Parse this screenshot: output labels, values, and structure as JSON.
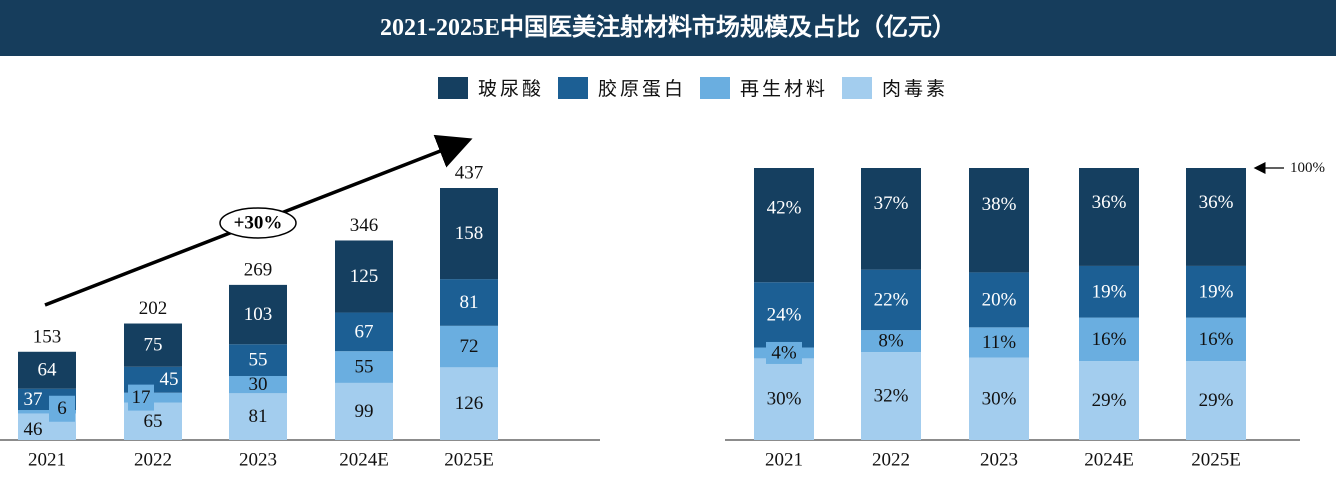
{
  "title": "2021-2025E中国医美注射材料市场规模及占比（亿元）",
  "chart_data": [
    {
      "type": "bar",
      "stacked": true,
      "categories": [
        "2021",
        "2022",
        "2023",
        "2024E",
        "2025E"
      ],
      "series": [
        {
          "name": "肉毒素",
          "color": "#a3cdee",
          "values": [
            46,
            65,
            81,
            99,
            126
          ]
        },
        {
          "name": "再生材料",
          "color": "#6aaee0",
          "values": [
            6,
            17,
            30,
            55,
            72
          ]
        },
        {
          "name": "胶原蛋白",
          "color": "#1c5f94",
          "values": [
            37,
            45,
            55,
            67,
            81
          ]
        },
        {
          "name": "玻尿酸",
          "color": "#153f60",
          "values": [
            64,
            75,
            103,
            125,
            158
          ]
        }
      ],
      "totals": [
        "153",
        "202",
        "269",
        "346",
        "437"
      ],
      "annotation": "+30%",
      "ylim": [
        0,
        437
      ]
    },
    {
      "type": "bar",
      "stacked": true,
      "percent": true,
      "categories": [
        "2021",
        "2022",
        "2023",
        "2024E",
        "2025E"
      ],
      "series": [
        {
          "name": "肉毒素",
          "color": "#a3cdee",
          "values": [
            30,
            32,
            30,
            29,
            29
          ]
        },
        {
          "name": "再生材料",
          "color": "#6aaee0",
          "values": [
            4,
            8,
            11,
            16,
            16
          ]
        },
        {
          "name": "胶原蛋白",
          "color": "#1c5f94",
          "values": [
            24,
            22,
            20,
            19,
            19
          ]
        },
        {
          "name": "玻尿酸",
          "color": "#153f60",
          "values": [
            42,
            37,
            38,
            36,
            36
          ]
        }
      ],
      "annotation": "100%"
    }
  ],
  "legend": [
    "玻尿酸",
    "胶原蛋白",
    "再生材料",
    "肉毒素"
  ]
}
